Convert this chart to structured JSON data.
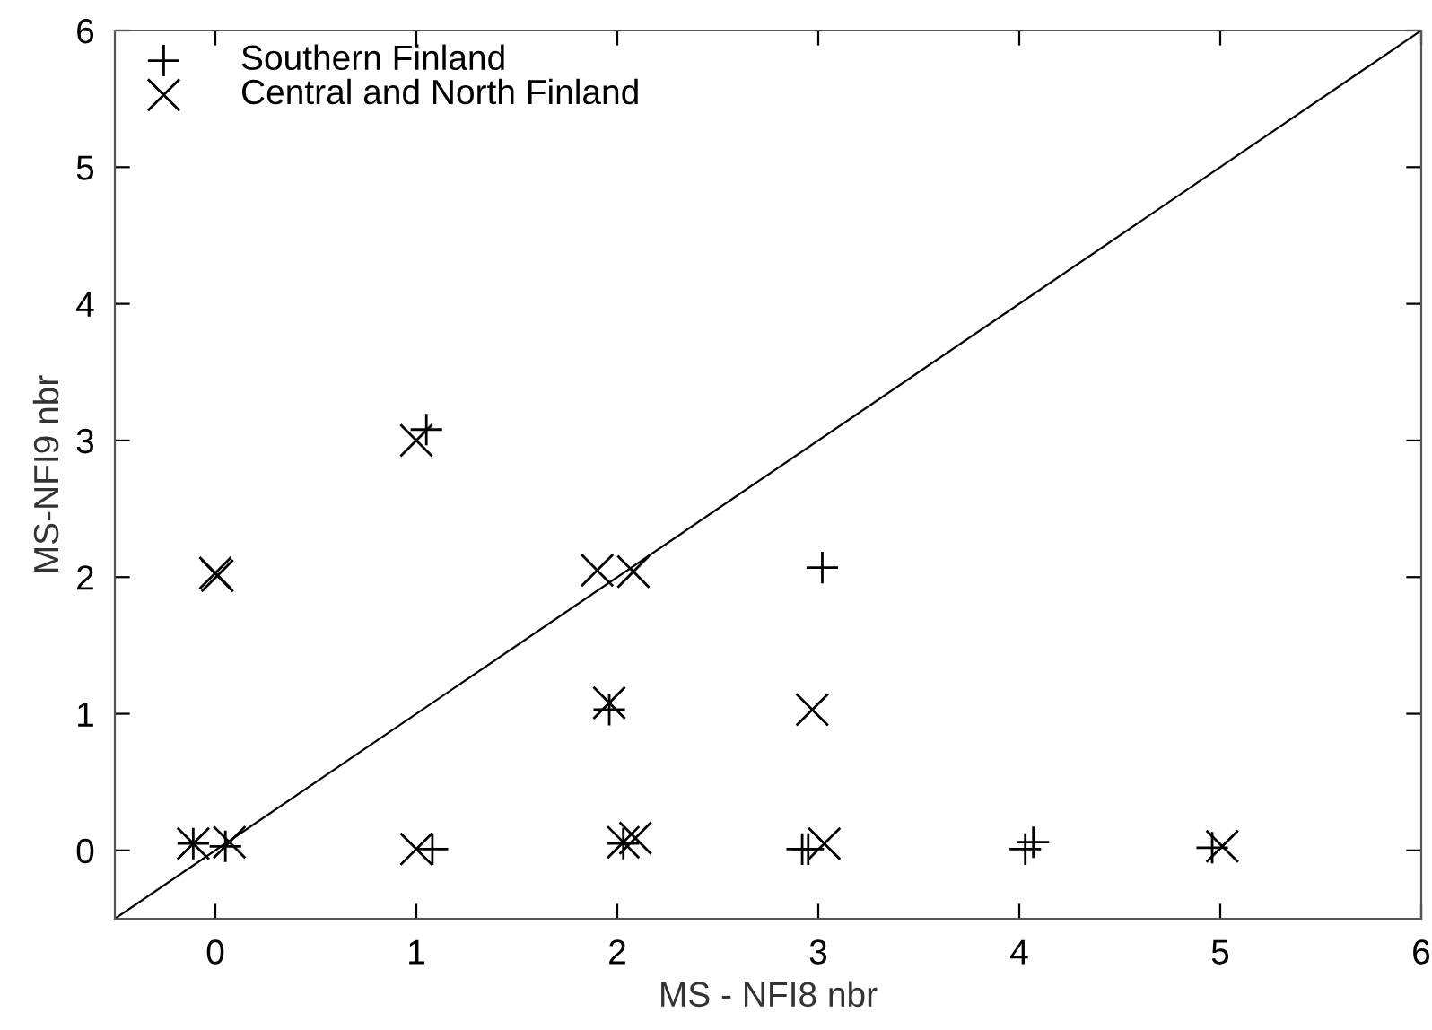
{
  "chart_data": {
    "type": "scatter",
    "xlabel": "MS - NFI8 nbr",
    "ylabel": "MS-NFI9 nbr",
    "xlim": [
      -0.5,
      6
    ],
    "ylim": [
      -0.5,
      6
    ],
    "xticks": [
      0,
      1,
      2,
      3,
      4,
      5,
      6
    ],
    "yticks": [
      0,
      1,
      2,
      3,
      4,
      5,
      6
    ],
    "grid": false,
    "legend": "top left",
    "series": [
      {
        "name": "Southern Finland",
        "color": "#000000",
        "marker": "plus",
        "x": [
          1.05,
          -0.11,
          0.05,
          1.08,
          1.96,
          2.03,
          3.02,
          2.92,
          2.95,
          4.03,
          4.07,
          4.96
        ],
        "values": [
          3.08,
          0.05,
          0.03,
          0.01,
          1.03,
          0.05,
          2.07,
          0.01,
          0.01,
          0.01,
          0.06,
          0.02
        ]
      },
      {
        "name": "Central and North Finland",
        "color": "#000000",
        "marker": "cross",
        "x": [
          1.0,
          0.0,
          0.01,
          1.9,
          2.08,
          1.96,
          -0.11,
          0.07,
          1.0,
          2.03,
          2.09,
          2.97,
          3.03,
          5.01
        ],
        "values": [
          3.0,
          2.03,
          2.01,
          2.05,
          2.04,
          1.08,
          0.05,
          0.06,
          0.01,
          0.06,
          0.09,
          1.03,
          0.05,
          0.03
        ]
      },
      {
        "type": "line",
        "color": "#000000",
        "marker": "none",
        "x": [
          -0.5,
          6
        ],
        "values": [
          -0.5,
          6
        ]
      }
    ]
  }
}
